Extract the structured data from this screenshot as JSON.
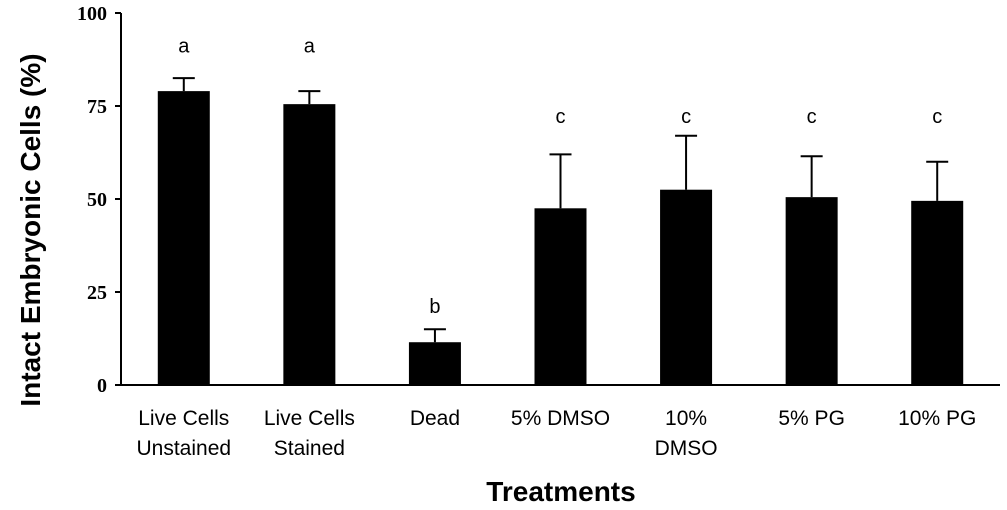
{
  "chart_data": {
    "type": "bar",
    "xlabel": "Treatments",
    "ylabel": "Intact  Embryonic Cells (%)",
    "ylim": [
      0,
      100
    ],
    "yticks": [
      0,
      25,
      50,
      75,
      100
    ],
    "grid": false,
    "categories": [
      [
        "Live Cells",
        "Unstained"
      ],
      [
        "Live Cells",
        "Stained"
      ],
      [
        "Dead"
      ],
      [
        "5% DMSO"
      ],
      [
        "10%",
        "DMSO"
      ],
      [
        "5% PG"
      ],
      [
        "10% PG"
      ]
    ],
    "values": [
      79,
      75.5,
      11.5,
      47.5,
      52.5,
      50.5,
      49.5
    ],
    "error": [
      3.5,
      3.5,
      3.5,
      14.5,
      14.5,
      11,
      10.5
    ],
    "significance_letters": [
      "a",
      "a",
      "b",
      "c",
      "c",
      "c",
      "c"
    ],
    "bar_color": "#000000"
  }
}
